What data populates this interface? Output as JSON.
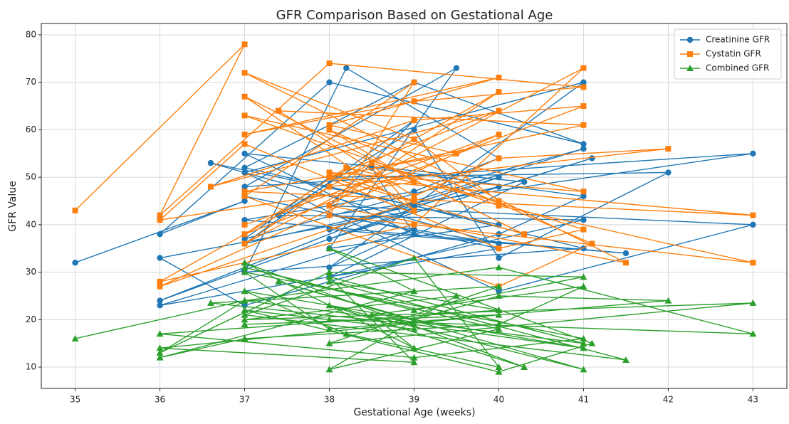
{
  "chart_data": {
    "type": "line",
    "title": "GFR Comparison Based on Gestational Age",
    "x_label": "Gestational Age (weeks)",
    "y_label": "GFR Value",
    "x": [
      35,
      37,
      36,
      38,
      41,
      39,
      37,
      40,
      38,
      39.5,
      37,
      43,
      38,
      40,
      36.6,
      39,
      41,
      37,
      38.2,
      40,
      39,
      37,
      41.5,
      38,
      40,
      36,
      39,
      41,
      37,
      38,
      42,
      40,
      39,
      37.4,
      41,
      38,
      40.3,
      37,
      39,
      38.5,
      41,
      40,
      37,
      36,
      39,
      38,
      41.1,
      40,
      37,
      39,
      38,
      43,
      40,
      37,
      41,
      38,
      39,
      36,
      40,
      37
    ],
    "series": [
      {
        "name": "Creatinine GFR",
        "color": "#1f77b4",
        "marker": "circle",
        "values": [
          32,
          45,
          38,
          70,
          57,
          70,
          52,
          40,
          35,
          73,
          48,
          55,
          42,
          36,
          53,
          44,
          35,
          30,
          73,
          54,
          47,
          41,
          34,
          39,
          50,
          24,
          45,
          56,
          37,
          50,
          51,
          33,
          60,
          42,
          41,
          29,
          49,
          55,
          38,
          52,
          46,
          38,
          23,
          33,
          43,
          37,
          54,
          48,
          36,
          62,
          44,
          40,
          26,
          51,
          70,
          31,
          39,
          23,
          35,
          46
        ]
      },
      {
        "name": "Cystatin GFR",
        "color": "#ff7f0e",
        "marker": "square",
        "values": [
          43,
          78,
          42,
          74,
          69,
          66,
          59,
          71,
          61,
          55,
          47,
          42,
          50,
          64,
          48,
          62,
          65,
          38,
          52,
          45,
          58,
          72,
          32,
          44,
          68,
          28,
          40,
          73,
          36,
          48,
          56,
          54,
          46,
          64,
          61,
          50,
          38,
          67,
          43,
          53,
          39,
          35,
          57,
          41,
          49,
          60,
          36,
          27,
          46,
          70,
          42,
          32,
          44,
          63,
          47,
          51,
          45,
          27,
          59,
          40
        ]
      },
      {
        "name": "Combined GFR",
        "color": "#2ca02c",
        "marker": "triangle",
        "values": [
          16,
          24,
          13,
          30,
          29,
          22,
          31,
          18,
          9.5,
          25,
          20,
          23.5,
          15,
          27,
          23.5,
          19,
          14,
          26,
          17,
          10,
          33,
          21,
          11.5,
          28,
          22,
          17,
          12,
          16,
          30,
          18,
          24,
          25,
          20,
          28,
          9.5,
          23,
          10,
          32,
          14,
          21,
          27,
          19,
          16,
          12,
          26,
          35,
          15,
          9,
          22,
          18,
          20,
          17,
          31,
          24,
          15,
          29,
          11,
          14,
          21,
          19
        ]
      }
    ],
    "xlim": [
      34.6,
      43.4
    ],
    "xticks": [
      35,
      36,
      37,
      38,
      39,
      40,
      41,
      42,
      43
    ],
    "ylim": [
      5.5,
      82.4
    ],
    "yticks": [
      10,
      20,
      30,
      40,
      50,
      60,
      70,
      80
    ],
    "grid": true,
    "legend": "upper right"
  }
}
